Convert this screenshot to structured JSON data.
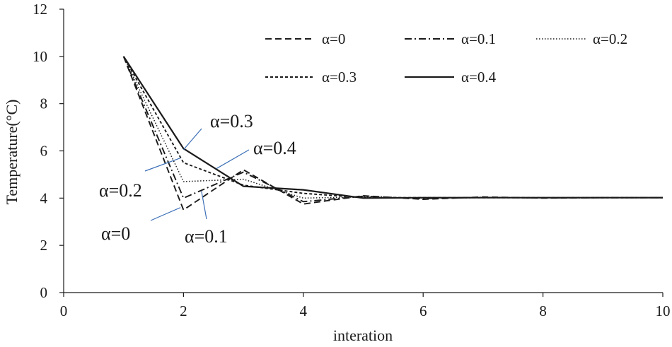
{
  "chart_data": {
    "type": "line",
    "xlabel": "interation",
    "ylabel": "Temperature(°C)",
    "xlim": [
      0,
      10
    ],
    "ylim": [
      0,
      12
    ],
    "xticks": [
      0,
      2,
      4,
      6,
      8,
      10
    ],
    "yticks": [
      0,
      2,
      4,
      6,
      8,
      10,
      12
    ],
    "grid": false,
    "legend_position": "top-right",
    "series": [
      {
        "name": "α=0",
        "dash": "dashed",
        "x": [
          1,
          2,
          3,
          4,
          5,
          6,
          7,
          8,
          9,
          10
        ],
        "y": [
          10,
          3.5,
          5.2,
          3.75,
          4.1,
          3.95,
          4.05,
          4.0,
          4.02,
          4.02
        ]
      },
      {
        "name": "α=0.1",
        "dash": "dashdot",
        "x": [
          1,
          2,
          3,
          4,
          5,
          6,
          7,
          8,
          9,
          10
        ],
        "y": [
          10,
          4.0,
          5.1,
          3.85,
          4.08,
          3.98,
          4.03,
          4.01,
          4.02,
          4.02
        ]
      },
      {
        "name": "α=0.2",
        "dash": "dotted",
        "x": [
          1,
          2,
          3,
          4,
          5,
          6,
          7,
          8,
          9,
          10
        ],
        "y": [
          10,
          4.7,
          4.8,
          4.0,
          4.05,
          4.0,
          4.02,
          4.02,
          4.02,
          4.02
        ]
      },
      {
        "name": "α=0.3",
        "dash": "shortdash",
        "x": [
          1,
          2,
          3,
          4,
          5,
          6,
          7,
          8,
          9,
          10
        ],
        "y": [
          10,
          5.5,
          4.55,
          4.2,
          4.02,
          4.02,
          4.02,
          4.02,
          4.02,
          4.02
        ]
      },
      {
        "name": "α=0.4",
        "dash": "solid",
        "x": [
          1,
          2,
          3,
          4,
          5,
          6,
          7,
          8,
          9,
          10
        ],
        "y": [
          10,
          6.1,
          4.5,
          4.35,
          4.0,
          4.02,
          4.02,
          4.02,
          4.02,
          4.02
        ]
      }
    ],
    "annotations": [
      {
        "text": "α=0.3",
        "target": [
          2.0,
          6.05
        ]
      },
      {
        "text": "α=0.4",
        "target": [
          2.55,
          5.25
        ]
      },
      {
        "text": "α=0.2",
        "target": [
          1.95,
          5.7
        ]
      },
      {
        "text": "α=0",
        "target": [
          1.95,
          3.6
        ]
      },
      {
        "text": "α=0.1",
        "target": [
          2.3,
          4.3
        ]
      }
    ]
  }
}
